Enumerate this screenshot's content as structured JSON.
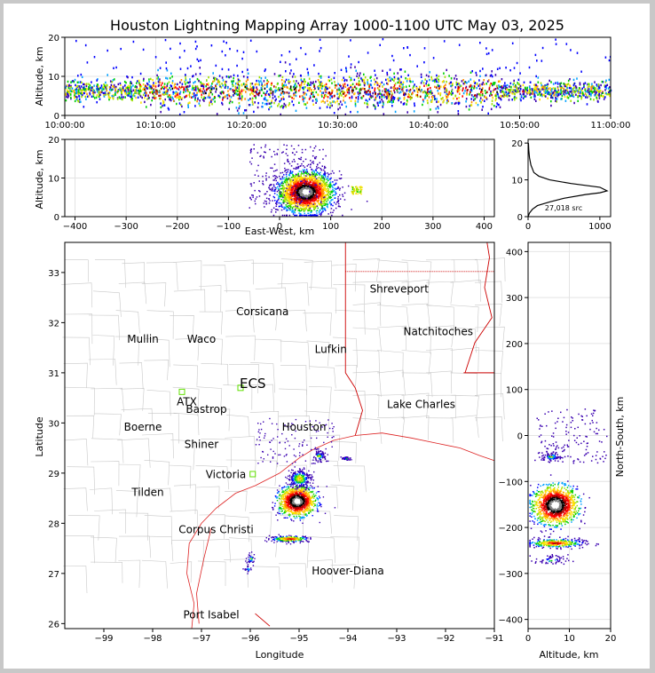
{
  "title": "Houston Lightning Mapping Array 1000-1100 UTC May 03, 2025",
  "colors": {
    "border": "#c8c8c8",
    "state_line": "#cc0000",
    "county_line": "#bbbbbb",
    "grid": "#dddddd"
  },
  "chart_data": [
    {
      "type": "scatter",
      "panel": "altitude-time",
      "ylabel": "Altitude, km",
      "ylim": [
        0,
        20
      ],
      "yticks": [
        "0",
        "10",
        "20"
      ],
      "xticks": [
        "10:00:00",
        "10:10:00",
        "10:20:00",
        "10:30:00",
        "10:40:00",
        "10:50:00",
        "11:00:00"
      ],
      "xlim_minutes": [
        0,
        60
      ]
    },
    {
      "type": "scatter",
      "panel": "east-west-altitude",
      "xlabel": "East-West, km",
      "ylabel": "Altitude, km",
      "xlim": [
        -420,
        420
      ],
      "ylim": [
        0,
        20
      ],
      "xticks": [
        "−400",
        "−300",
        "−200",
        "−100",
        "0",
        "100",
        "200",
        "300",
        "400"
      ],
      "yticks": [
        "0",
        "10",
        "20"
      ]
    },
    {
      "type": "line",
      "panel": "altitude-histogram",
      "xlim": [
        0,
        1150
      ],
      "ylim": [
        0,
        21
      ],
      "xticks": [
        "0",
        "1000"
      ],
      "yticks": [
        "0",
        "10",
        "20"
      ],
      "annotation": "27,018 src",
      "x": [
        0,
        20,
        60,
        130,
        300,
        500,
        800,
        1000,
        1100,
        1000,
        600,
        300,
        150,
        80,
        40,
        20,
        10,
        5
      ],
      "y": [
        0,
        1,
        2,
        3,
        4,
        5,
        6,
        6.5,
        7,
        8,
        9,
        10,
        11,
        12,
        14,
        16,
        18,
        20
      ]
    },
    {
      "type": "scatter",
      "panel": "plan-view-map",
      "xlabel": "Longitude",
      "ylabel": "Latitude",
      "xlim": [
        -99.8,
        -91
      ],
      "ylim": [
        25.9,
        33.6
      ],
      "xticks": [
        "−99",
        "−98",
        "−97",
        "−96",
        "−95",
        "−94",
        "−93",
        "−92",
        "−91"
      ],
      "yticks": [
        "26",
        "27",
        "28",
        "29",
        "30",
        "31",
        "32",
        "33"
      ],
      "cities": [
        {
          "name": "Shreveport",
          "lon": -92.95,
          "lat": 32.6
        },
        {
          "name": "Corsicana",
          "lon": -95.75,
          "lat": 32.15
        },
        {
          "name": "Natchitoches",
          "lon": -92.15,
          "lat": 31.75
        },
        {
          "name": "Waco",
          "lon": -97.0,
          "lat": 31.6
        },
        {
          "name": "Lufkin",
          "lon": -94.35,
          "lat": 31.4
        },
        {
          "name": "Bastrop",
          "lon": -96.9,
          "lat": 30.2
        },
        {
          "name": "Lake Charles",
          "lon": -92.5,
          "lat": 30.3
        },
        {
          "name": "Boerne",
          "lon": -98.2,
          "lat": 29.85
        },
        {
          "name": "Shiner",
          "lon": -97.0,
          "lat": 29.5
        },
        {
          "name": "Victoria",
          "lon": -96.5,
          "lat": 28.9
        },
        {
          "name": "Tilden",
          "lon": -98.1,
          "lat": 28.55
        },
        {
          "name": "Corpus Christi",
          "lon": -96.7,
          "lat": 27.8
        },
        {
          "name": "Port Isabel",
          "lon": -96.8,
          "lat": 26.1
        }
      ],
      "stations": [
        {
          "name": "Mullin",
          "lon": -98.2,
          "lat": 31.6,
          "color": "#f08040"
        },
        {
          "name": "ATX",
          "lon": -97.3,
          "lat": 30.35,
          "color": "#f08040"
        },
        {
          "name": "ECS",
          "lon": -95.95,
          "lat": 30.7,
          "color": "#8b1a1a"
        },
        {
          "name": "Houston",
          "lon": -94.9,
          "lat": 29.85,
          "color": "#e8b830"
        },
        {
          "name": "Hoover-Diana",
          "lon": -94.0,
          "lat": 26.98,
          "color": "#2020e0"
        }
      ]
    },
    {
      "type": "scatter",
      "panel": "altitude-north-south",
      "xlabel": "Altitude, km",
      "ylabel": "North-South, km",
      "xlim": [
        0,
        20
      ],
      "ylim": [
        -420,
        420
      ],
      "xticks": [
        "0",
        "10",
        "20"
      ],
      "yticks": [
        "−400",
        "−300",
        "−200",
        "−100",
        "0",
        "100",
        "200",
        "300",
        "400"
      ]
    }
  ]
}
